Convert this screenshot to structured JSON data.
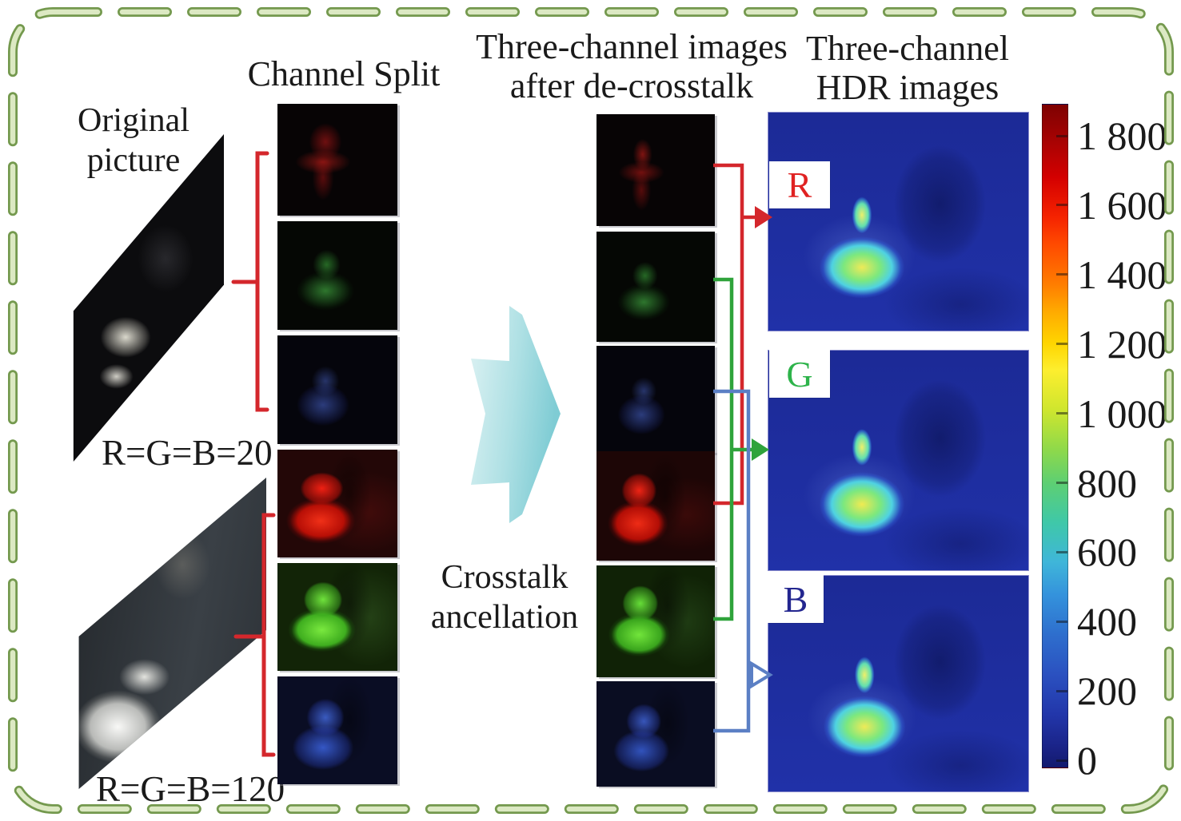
{
  "figure": {
    "titles": {
      "original_line1": "Original",
      "original_line2": "picture",
      "channel_split": "Channel Split",
      "decross_line1": "Three-channel images",
      "decross_line2": "after de-crosstalk",
      "hdr_line1": "Three-channel",
      "hdr_line2": "HDR images",
      "crosstalk_line1": "Crosstalk",
      "crosstalk_line2": "ancellation"
    },
    "exposure_labels": {
      "low": "R=G=B=20",
      "high": "R=G=B=120"
    },
    "channel_labels": {
      "r": "R",
      "g": "G",
      "b": "B"
    },
    "colorbar": {
      "ticks": [
        "1 800",
        "1 600",
        "1 400",
        "1 200",
        "1 000",
        "800",
        "600",
        "400",
        "200",
        "0"
      ],
      "min": 0,
      "max": 1800,
      "colormap": "jet"
    },
    "colors": {
      "connector_red": "#d4272c",
      "connector_green": "#2fa33b",
      "connector_blue": "#5b7fc4",
      "bracket_red": "#d4272c",
      "border_dash_fill": "#dce9c3",
      "border_dash_outline": "#74994e",
      "arrow_teal": "#8fd6da",
      "hdr_r_letter": "#e02222",
      "hdr_g_letter": "#2db34a",
      "hdr_b_letter": "#23268f"
    }
  }
}
